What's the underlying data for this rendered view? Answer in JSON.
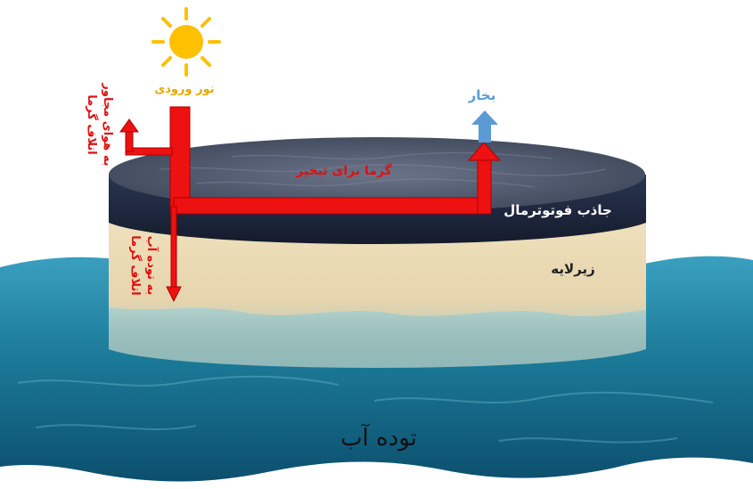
{
  "labels": {
    "incoming_light": "نور ورودی",
    "vapor": "بخار",
    "heat_loss_air_line1": "اتلاف گرما",
    "heat_loss_air_line2": "به هوای مجاور",
    "heat_for_evaporation": "گرما برای تبخیر",
    "photothermal_absorber": "جاذب فوتوترمال",
    "heat_loss_water_line1": "اتلاف گرما",
    "heat_loss_water_line2": "به توده آب",
    "substrate": "زیرلایه",
    "water_body": "توده آب"
  },
  "colors": {
    "heat_arrow": "#ee1111",
    "heat_label": "#e01010",
    "vapor": "#5b9bd5",
    "sun": "#ffc000",
    "light_label": "#e8a800",
    "absorber": "#1f2a44",
    "substrate": "#ecdcb6",
    "water": "#1b7a98"
  },
  "icons": {
    "sun": "sun-icon",
    "vapor_arrow": "up-arrow-icon"
  }
}
